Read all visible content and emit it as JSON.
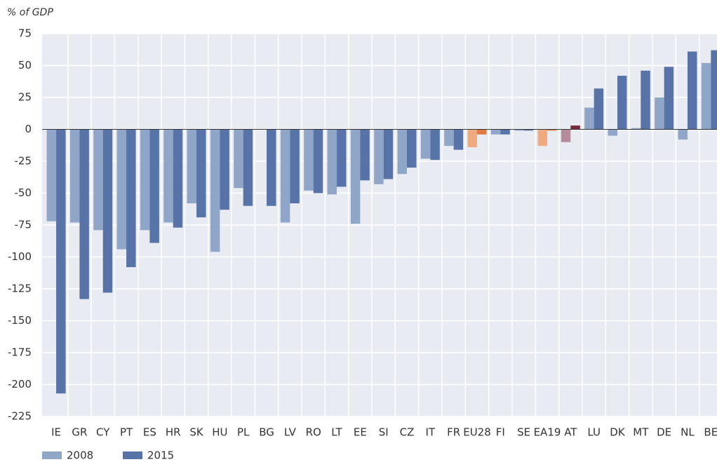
{
  "chart_data": {
    "type": "bar",
    "title": "% of GDP",
    "categories": [
      "IE",
      "GR",
      "CY",
      "PT",
      "ES",
      "HR",
      "SK",
      "HU",
      "PL",
      "BG",
      "LV",
      "RO",
      "LT",
      "EE",
      "SI",
      "CZ",
      "IT",
      "FR",
      "EU28",
      "FI",
      "SE",
      "EA19",
      "AT",
      "LU",
      "DK",
      "MT",
      "DE",
      "NL",
      "BE"
    ],
    "series": [
      {
        "name": "2008",
        "color": "#8fa6c9",
        "values": [
          -72,
          -73,
          -79,
          -94,
          -79,
          -73,
          -58,
          -96,
          -46,
          null,
          -73,
          -48,
          -51,
          -74,
          -43,
          -35,
          -23,
          -13,
          -14,
          -4,
          -1,
          -13,
          -10,
          17,
          -5,
          1,
          25,
          -8,
          52
        ],
        "colors": [
          "#8fa6c9",
          "#8fa6c9",
          "#8fa6c9",
          "#8fa6c9",
          "#8fa6c9",
          "#8fa6c9",
          "#8fa6c9",
          "#8fa6c9",
          "#8fa6c9",
          "#8fa6c9",
          "#8fa6c9",
          "#8fa6c9",
          "#8fa6c9",
          "#8fa6c9",
          "#8fa6c9",
          "#8fa6c9",
          "#8fa6c9",
          "#8fa6c9",
          "#f0aa80",
          "#8fa6c9",
          "#8fa6c9",
          "#f0aa80",
          "#b58b9b",
          "#8fa6c9",
          "#8fa6c9",
          "#8fa6c9",
          "#8fa6c9",
          "#8fa6c9",
          "#8fa6c9"
        ]
      },
      {
        "name": "2015",
        "color": "#5773a8",
        "values": [
          -207,
          -133,
          -128,
          -108,
          -89,
          -77,
          -69,
          -63,
          -60,
          -60,
          -58,
          -50,
          -45,
          -40,
          -39,
          -30,
          -24,
          -16,
          -4,
          -4,
          -1,
          -1,
          3,
          32,
          42,
          46,
          49,
          61,
          62
        ],
        "colors": [
          "#5773a8",
          "#5773a8",
          "#5773a8",
          "#5773a8",
          "#5773a8",
          "#5773a8",
          "#5773a8",
          "#5773a8",
          "#5773a8",
          "#5773a8",
          "#5773a8",
          "#5773a8",
          "#5773a8",
          "#5773a8",
          "#5773a8",
          "#5773a8",
          "#5773a8",
          "#5773a8",
          "#e07a42",
          "#5773a8",
          "#5773a8",
          "#e07a42",
          "#7a2a3c",
          "#5773a8",
          "#5773a8",
          "#5773a8",
          "#5773a8",
          "#5773a8",
          "#5773a8"
        ]
      }
    ],
    "ylim": [
      -225,
      75
    ],
    "yticks": [
      -225,
      -200,
      -175,
      -150,
      -125,
      -100,
      -75,
      -50,
      -25,
      0,
      25,
      50,
      75
    ],
    "grid": true
  }
}
